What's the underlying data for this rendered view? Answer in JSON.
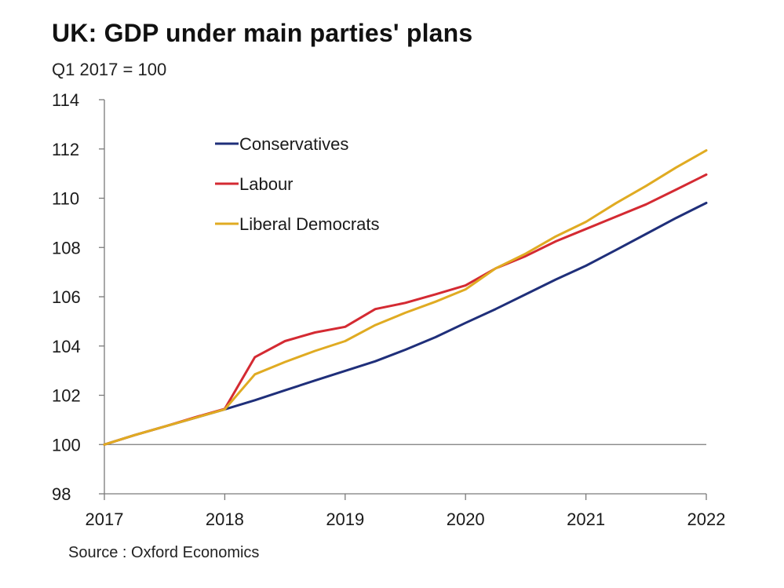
{
  "chart_data": {
    "type": "line",
    "title": "UK: GDP under main parties' plans",
    "subtitle": "Q1 2017 = 100",
    "source": "Source : Oxford Economics",
    "xlabel": "",
    "ylabel": "",
    "xlim": [
      2017,
      2022
    ],
    "ylim": [
      98,
      114
    ],
    "x_ticks": [
      "2017",
      "2018",
      "2019",
      "2020",
      "2021",
      "2022"
    ],
    "y_ticks": [
      "98",
      "100",
      "102",
      "104",
      "106",
      "108",
      "110",
      "112",
      "114"
    ],
    "reference_line": 100,
    "grid": false,
    "legend_position": "top-left",
    "x": [
      2017.0,
      2017.25,
      2017.5,
      2017.75,
      2018.0,
      2018.25,
      2018.5,
      2018.75,
      2019.0,
      2019.25,
      2019.5,
      2019.75,
      2020.0,
      2020.25,
      2020.5,
      2020.75,
      2021.0,
      2021.25,
      2021.5,
      2021.75,
      2022.0
    ],
    "series": [
      {
        "name": "Conservatives",
        "color": "#1f2f7a",
        "values": [
          100,
          100.38,
          100.73,
          101.08,
          101.43,
          101.8,
          102.2,
          102.6,
          102.99,
          103.38,
          103.85,
          104.36,
          104.94,
          105.5,
          106.1,
          106.7,
          107.26,
          107.9,
          108.55,
          109.2,
          109.81
        ]
      },
      {
        "name": "Labour",
        "color": "#d42a32",
        "values": [
          100,
          100.38,
          100.73,
          101.1,
          101.45,
          103.55,
          104.2,
          104.55,
          104.78,
          105.5,
          105.75,
          106.1,
          106.46,
          107.15,
          107.65,
          108.25,
          108.75,
          109.25,
          109.75,
          110.35,
          110.96
        ]
      },
      {
        "name": "Liberal Democrats",
        "color": "#e0ab22",
        "values": [
          100,
          100.38,
          100.73,
          101.08,
          101.43,
          102.85,
          103.35,
          103.8,
          104.2,
          104.85,
          105.35,
          105.8,
          106.3,
          107.15,
          107.75,
          108.45,
          109.04,
          109.8,
          110.5,
          111.25,
          111.94
        ]
      }
    ]
  }
}
